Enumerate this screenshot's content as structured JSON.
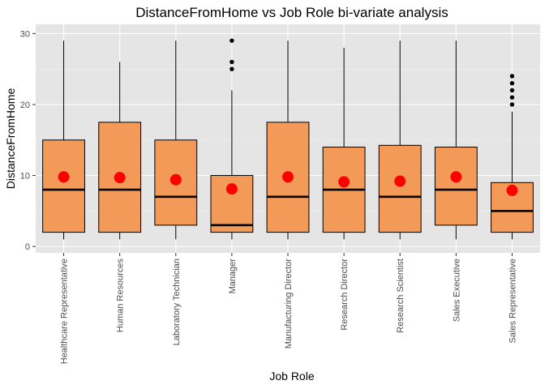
{
  "chart_data": {
    "type": "boxplot",
    "title": "DistanceFromHome vs Job Role bi-variate analysis",
    "xlabel": "Job Role",
    "ylabel": "DistanceFromHome",
    "ylim": [
      -0.9,
      31.3
    ],
    "yticks": [
      0,
      10,
      20,
      30
    ],
    "grid": true,
    "box_fill": "#F39A58",
    "mean_color": "#FF0000",
    "outlier_color": "#000000",
    "panel_background": "#E5E5E5",
    "categories": [
      "Healthcare Representative",
      "Human Resources",
      "Laboratory Technician",
      "Manager",
      "Manufacturing Director",
      "Research Director",
      "Research Scientist",
      "Sales Executive",
      "Sales Representative"
    ],
    "boxes": [
      {
        "whisker_low": 1,
        "q1": 2,
        "median": 8,
        "q3": 15,
        "whisker_high": 29,
        "mean": 9.8,
        "outliers": []
      },
      {
        "whisker_low": 1,
        "q1": 2,
        "median": 8,
        "q3": 17.5,
        "whisker_high": 26,
        "mean": 9.7,
        "outliers": []
      },
      {
        "whisker_low": 1,
        "q1": 3,
        "median": 7,
        "q3": 15,
        "whisker_high": 29,
        "mean": 9.4,
        "outliers": []
      },
      {
        "whisker_low": 1,
        "q1": 2,
        "median": 3,
        "q3": 10,
        "whisker_high": 22,
        "mean": 8.1,
        "outliers": [
          25,
          26,
          29
        ]
      },
      {
        "whisker_low": 1,
        "q1": 2,
        "median": 7,
        "q3": 17.5,
        "whisker_high": 29,
        "mean": 9.8,
        "outliers": []
      },
      {
        "whisker_low": 1,
        "q1": 2,
        "median": 8,
        "q3": 14,
        "whisker_high": 28,
        "mean": 9.1,
        "outliers": []
      },
      {
        "whisker_low": 1,
        "q1": 2,
        "median": 7,
        "q3": 14.25,
        "whisker_high": 29,
        "mean": 9.2,
        "outliers": []
      },
      {
        "whisker_low": 1,
        "q1": 3,
        "median": 8,
        "q3": 14,
        "whisker_high": 29,
        "mean": 9.8,
        "outliers": []
      },
      {
        "whisker_low": 1,
        "q1": 2,
        "median": 5,
        "q3": 9,
        "whisker_high": 19,
        "mean": 7.9,
        "outliers": [
          21,
          22,
          23,
          24,
          20
        ]
      }
    ]
  }
}
